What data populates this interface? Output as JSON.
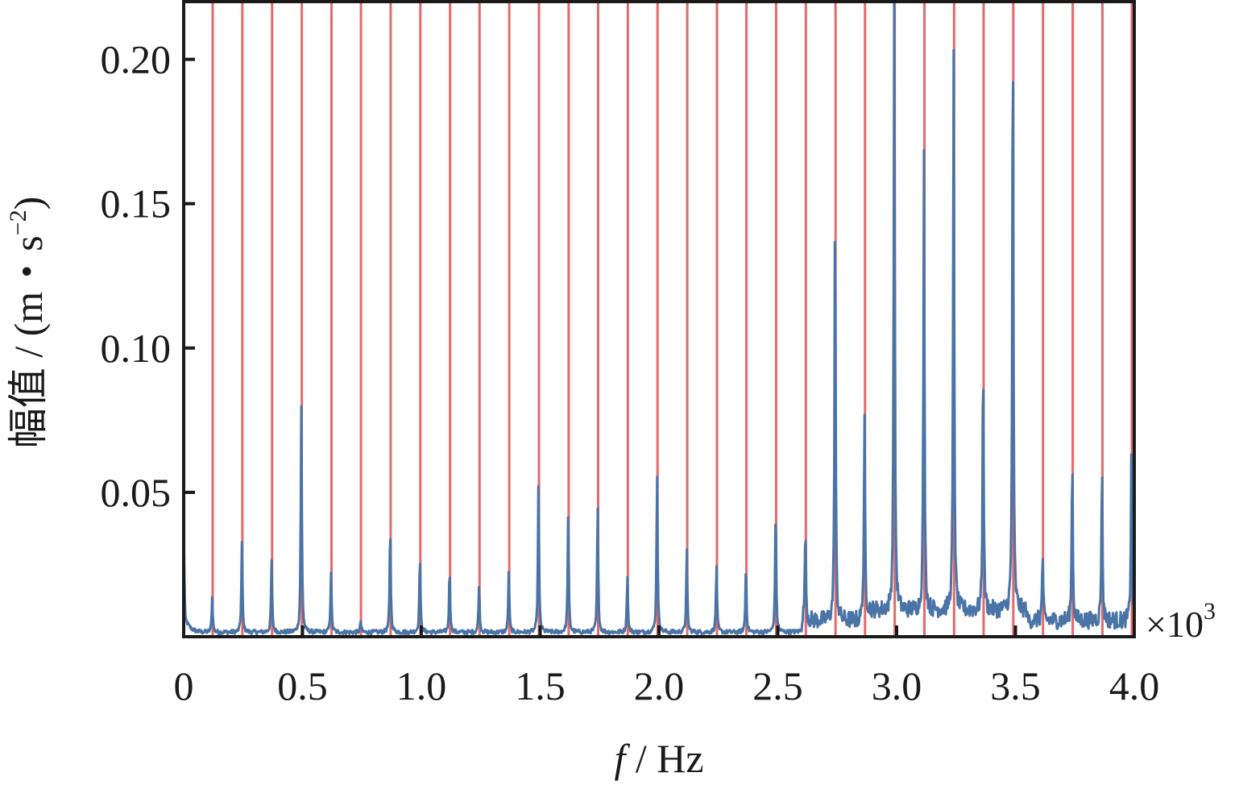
{
  "chart_data": {
    "type": "line",
    "title": "",
    "xlabel": {
      "italic": "f",
      "rest": " / Hz"
    },
    "ylabel": {
      "prefix": "幅值 / (m・s",
      "sup": "−2",
      "suffix": ")"
    },
    "x_multiplier": {
      "base": "×10",
      "exp": "3"
    },
    "xlim": [
      0,
      4.0
    ],
    "ylim": [
      0,
      0.22
    ],
    "x_ticks": [
      0,
      0.5,
      1.0,
      1.5,
      2.0,
      2.5,
      3.0,
      3.5,
      4.0
    ],
    "x_tick_labels": [
      "0",
      "0.5",
      "1.0",
      "1.5",
      "2.0",
      "2.5",
      "3.0",
      "3.5",
      "4.0"
    ],
    "y_ticks": [
      0.05,
      0.1,
      0.15,
      0.2
    ],
    "y_tick_labels": [
      "0.05",
      "0.10",
      "0.15",
      "0.20"
    ],
    "grid": false,
    "colors": {
      "spectrum": "#4a74a5",
      "harmonic_line": "#e05a5a",
      "frame": "#1a1a1a"
    },
    "harmonic_lines_x": [
      0.122,
      0.247,
      0.372,
      0.497,
      0.622,
      0.746,
      0.871,
      0.996,
      1.121,
      1.245,
      1.37,
      1.495,
      1.62,
      1.744,
      1.869,
      1.994,
      2.119,
      2.244,
      2.368,
      2.493,
      2.618,
      2.743,
      2.867,
      2.992,
      3.117,
      3.242,
      3.366,
      3.491,
      3.616,
      3.741,
      3.866,
      3.99
    ],
    "spectrum_peaks": [
      {
        "x": 0.12,
        "y": 0.012
      },
      {
        "x": 0.245,
        "y": 0.031
      },
      {
        "x": 0.37,
        "y": 0.025
      },
      {
        "x": 0.495,
        "y": 0.078
      },
      {
        "x": 0.62,
        "y": 0.021
      },
      {
        "x": 0.745,
        "y": 0.004
      },
      {
        "x": 0.869,
        "y": 0.037
      },
      {
        "x": 0.994,
        "y": 0.027
      },
      {
        "x": 1.119,
        "y": 0.022
      },
      {
        "x": 1.243,
        "y": 0.017
      },
      {
        "x": 1.368,
        "y": 0.021
      },
      {
        "x": 1.493,
        "y": 0.053
      },
      {
        "x": 1.618,
        "y": 0.041
      },
      {
        "x": 1.742,
        "y": 0.044
      },
      {
        "x": 1.867,
        "y": 0.02
      },
      {
        "x": 1.992,
        "y": 0.056
      },
      {
        "x": 2.117,
        "y": 0.029
      },
      {
        "x": 2.242,
        "y": 0.024
      },
      {
        "x": 2.366,
        "y": 0.023
      },
      {
        "x": 2.491,
        "y": 0.043
      },
      {
        "x": 2.616,
        "y": 0.033
      },
      {
        "x": 2.741,
        "y": 0.149
      },
      {
        "x": 2.865,
        "y": 0.065
      },
      {
        "x": 2.99,
        "y": 0.22
      },
      {
        "x": 3.115,
        "y": 0.157
      },
      {
        "x": 3.24,
        "y": 0.192
      },
      {
        "x": 3.364,
        "y": 0.09
      },
      {
        "x": 3.489,
        "y": 0.21
      },
      {
        "x": 3.614,
        "y": 0.022
      },
      {
        "x": 3.739,
        "y": 0.057
      },
      {
        "x": 3.864,
        "y": 0.054
      },
      {
        "x": 3.988,
        "y": 0.061
      }
    ]
  }
}
